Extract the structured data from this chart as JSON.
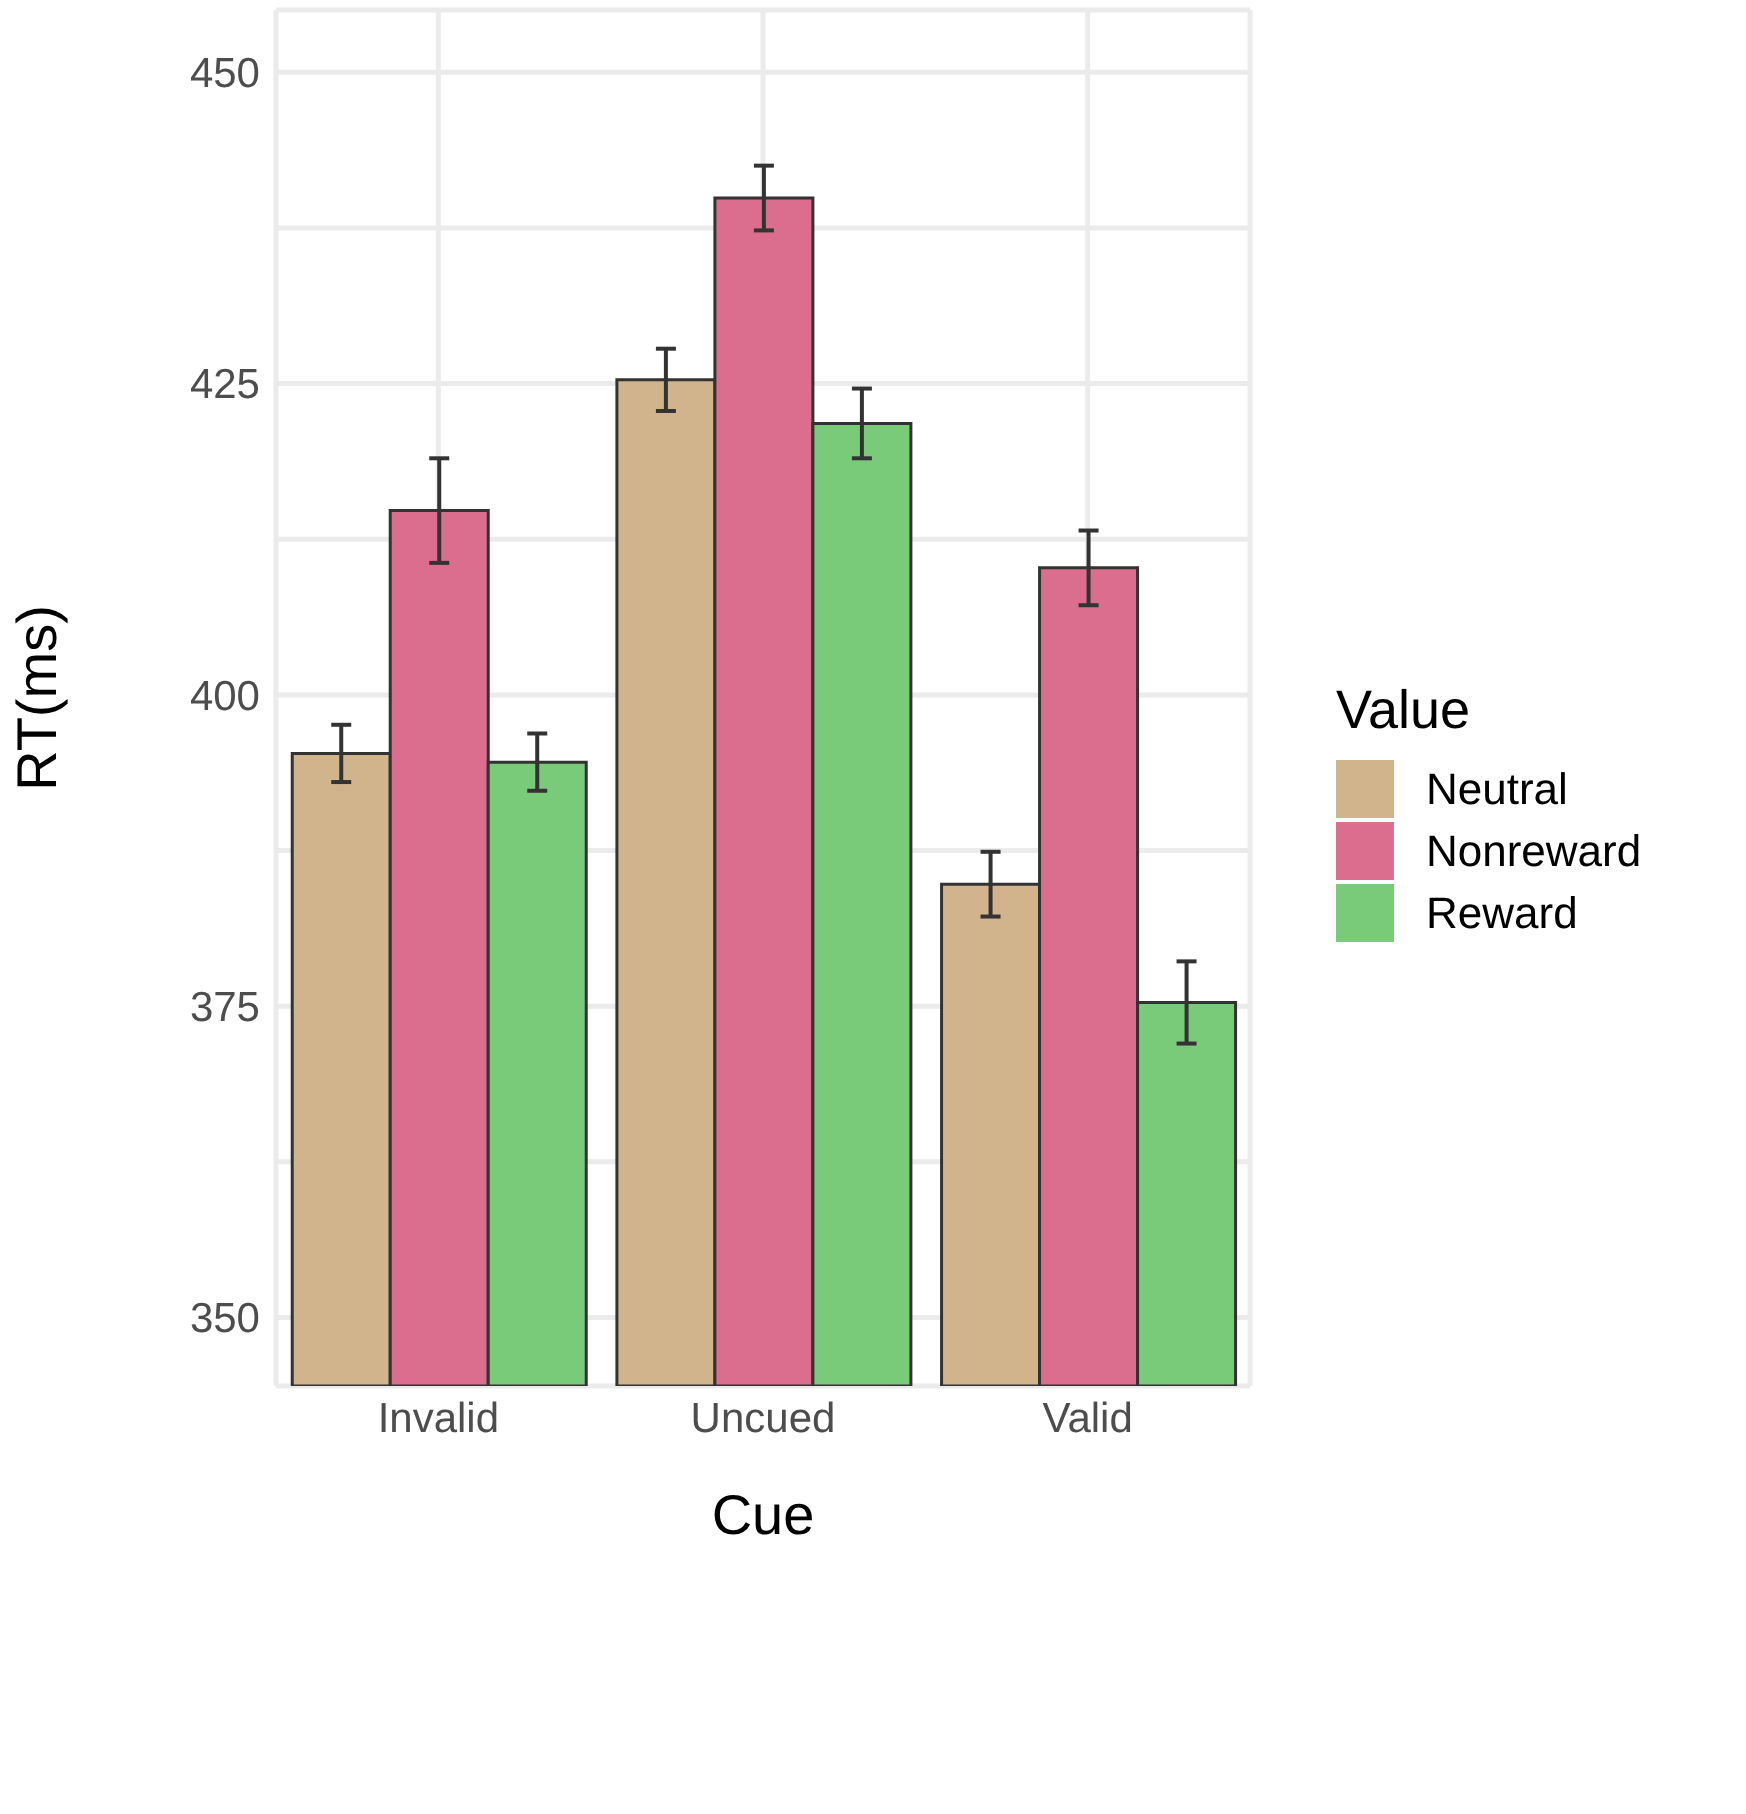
{
  "chart_data": {
    "type": "bar",
    "xlabel": "Cue",
    "ylabel": "RT(ms)",
    "legend_title": "Value",
    "categories": [
      "Invalid",
      "Uncued",
      "Valid"
    ],
    "series": [
      {
        "name": "Neutral",
        "color": "#d2b48c",
        "values": [
          395.3,
          425.3,
          384.8
        ],
        "errors": [
          2.3,
          2.5,
          2.6
        ]
      },
      {
        "name": "Nonreward",
        "color": "#db6d8e",
        "values": [
          414.8,
          439.9,
          410.2
        ],
        "errors": [
          4.2,
          2.6,
          3.0
        ]
      },
      {
        "name": "Reward",
        "color": "#79cb7a",
        "values": [
          394.6,
          421.8,
          375.3
        ],
        "errors": [
          2.3,
          2.8,
          3.3
        ]
      }
    ],
    "ylim": [
      344.5,
      455
    ],
    "yticks": [
      350,
      {
        "value": 362.5,
        "label": null
      },
      375,
      {
        "value": 387.5,
        "label": null
      },
      400,
      {
        "value": 412.5,
        "label": null
      },
      425,
      {
        "value": 437.5,
        "label": null
      },
      450
    ],
    "grid": true,
    "legend": "right"
  }
}
